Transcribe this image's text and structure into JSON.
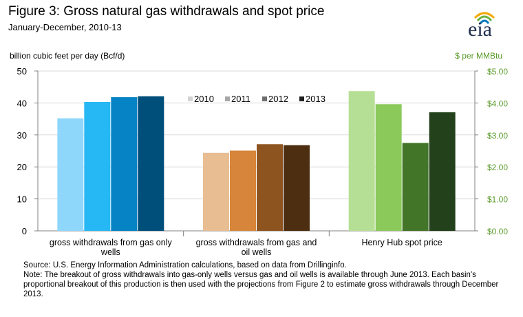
{
  "header": {
    "title": "Figure 3: Gross natural gas withdrawals and spot price",
    "subtitle": "January-December, 2010-13",
    "logo_text": "eia"
  },
  "footnotes": {
    "source": "Source: U.S. Energy Information  Administration calculations, based on data from Drillinginfo.",
    "note": "Note: The breakout of gross withdrawals into gas-only wells versus gas and oil wells is available  through June 2013. Each basin's proportional  breakout of this production is then used with the projections from Figure 2 to estimate gross withdrawals through December 2013."
  },
  "colors": {
    "gas_only": [
      "#8fd6fb",
      "#26b8f4",
      "#0683c4",
      "#004e7a"
    ],
    "gas_oil": [
      "#e8bd92",
      "#d6853a",
      "#8e5420",
      "#4d2e10"
    ],
    "spot": [
      "#b5df94",
      "#8bc95a",
      "#437529",
      "#23411a"
    ],
    "legend": [
      "#d3d3d3",
      "#a6a6a6",
      "#6e6e6e",
      "#1f1f1f"
    ],
    "right_axis": "#5a9a2a"
  },
  "chart_data": {
    "type": "bar",
    "title": "Figure 3: Gross natural gas withdrawals and spot price",
    "subtitle": "January-December, 2010-13",
    "ylabel": "billion cubic feet per day (Bcf/d)",
    "ylim": [
      0,
      50
    ],
    "yticks": [
      "0",
      "10",
      "20",
      "30",
      "40",
      "50"
    ],
    "y2label": "$ per MMBtu",
    "y2lim": [
      0,
      5
    ],
    "y2ticks": [
      "$0.00",
      "$1.00",
      "$2.00",
      "$3.00",
      "$4.00",
      "$5.00"
    ],
    "legend_position": "top-center",
    "grid": true,
    "categories": [
      "gross withdrawals from gas only wells",
      "gross withdrawals from gas and oil wells",
      "Henry Hub spot price"
    ],
    "series": [
      {
        "name": "2010",
        "values": [
          35.2,
          24.4,
          4.37
        ]
      },
      {
        "name": "2011",
        "values": [
          40.3,
          25.1,
          3.96
        ]
      },
      {
        "name": "2012",
        "values": [
          41.8,
          27.1,
          2.75
        ]
      },
      {
        "name": "2013",
        "values": [
          42.1,
          26.8,
          3.71
        ]
      }
    ],
    "category_axis": [
      "left",
      "left",
      "right"
    ]
  }
}
